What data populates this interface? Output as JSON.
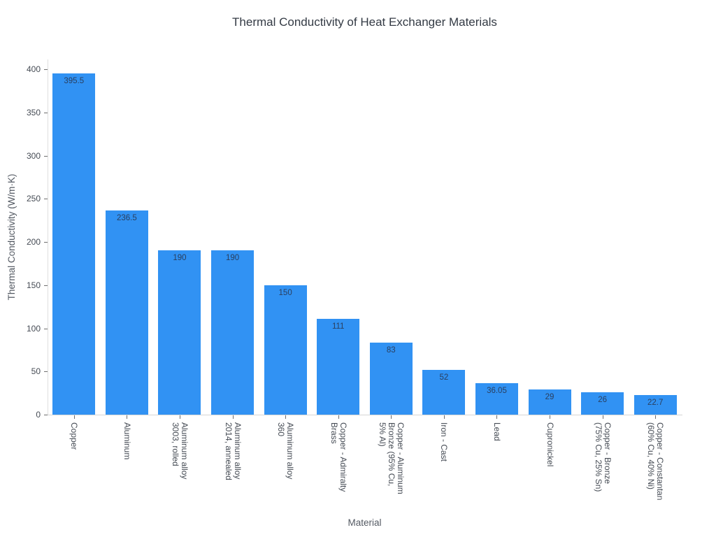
{
  "chart_data": {
    "type": "bar",
    "title": "Thermal Conductivity of Heat Exchanger Materials",
    "xlabel": "Material",
    "ylabel": "Thermal Conductivity (W/m·K)",
    "ylim": [
      0,
      400
    ],
    "yticks": [
      0,
      50,
      100,
      150,
      200,
      250,
      300,
      350,
      400
    ],
    "grid": false,
    "legend": false,
    "categories": [
      "Copper",
      "Aluminum",
      "Aluminum alloy\n3003, rolled",
      "Aluminum alloy\n2014, annealed",
      "Aluminum alloy\n360",
      "Copper - Admiralty\nBrass",
      "Copper - Aluminum\nBronze (95% Cu,\n5% Al)",
      "Iron - Cast",
      "Lead",
      "Cupronickel",
      "Copper - Bronze\n(75% Cu, 25% Sn)",
      "Copper - Constantan\n(60% Cu, 40% Ni)"
    ],
    "values": [
      395.5,
      236.5,
      190,
      190,
      150,
      111,
      83,
      52,
      36.05,
      29,
      26,
      22.7
    ],
    "value_labels": [
      "395.5",
      "236.5",
      "190",
      "190",
      "150",
      "111",
      "83",
      "52",
      "36.05",
      "29",
      "26",
      "22.7"
    ]
  },
  "colors": {
    "background": "#ffffff",
    "bar": "#3192f3",
    "value_label": "#2a3f5f",
    "tick_label": "#454b54",
    "axis_title": "#545a63",
    "title": "#333a44",
    "axis_line": "#d9d9d9",
    "tick_mark": "#6e6e6e"
  }
}
